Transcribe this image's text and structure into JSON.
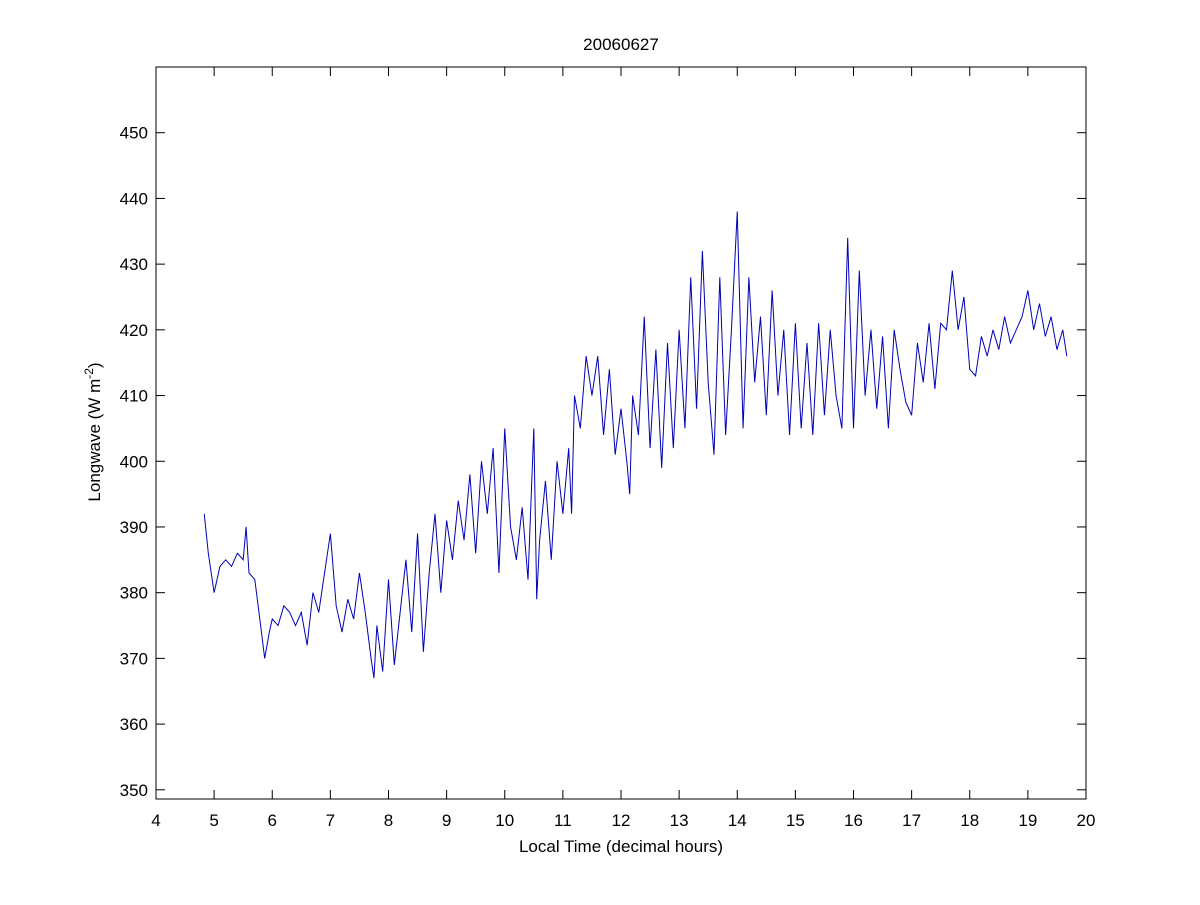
{
  "chart_data": {
    "type": "line",
    "title": "20060627",
    "xlabel": "Local Time (decimal hours)",
    "ylabel": {
      "text": "Longwave (W m",
      "superscript": "-2",
      "suffix": ")"
    },
    "xlim": [
      4,
      20
    ],
    "xticks": [
      4,
      5,
      6,
      7,
      8,
      9,
      10,
      11,
      12,
      13,
      14,
      15,
      16,
      17,
      18,
      19,
      20
    ],
    "ylim": [
      348.6,
      460
    ],
    "yticks": [
      350,
      360,
      370,
      380,
      390,
      400,
      410,
      420,
      430,
      440,
      450
    ],
    "series": [
      {
        "color": "#0000b8",
        "x": [
          4.83,
          4.9,
          5.0,
          5.1,
          5.2,
          5.3,
          5.4,
          5.5,
          5.55,
          5.6,
          5.7,
          5.8,
          5.87,
          5.95,
          6.0,
          6.1,
          6.2,
          6.3,
          6.4,
          6.5,
          6.6,
          6.7,
          6.8,
          6.9,
          7.0,
          7.1,
          7.2,
          7.3,
          7.4,
          7.5,
          7.6,
          7.7,
          7.75,
          7.8,
          7.9,
          8.0,
          8.1,
          8.2,
          8.3,
          8.4,
          8.5,
          8.6,
          8.7,
          8.8,
          8.9,
          9.0,
          9.1,
          9.2,
          9.3,
          9.4,
          9.5,
          9.6,
          9.7,
          9.8,
          9.9,
          10.0,
          10.1,
          10.2,
          10.3,
          10.4,
          10.5,
          10.55,
          10.6,
          10.7,
          10.8,
          10.9,
          11.0,
          11.1,
          11.15,
          11.2,
          11.3,
          11.4,
          11.5,
          11.6,
          11.7,
          11.8,
          11.9,
          12.0,
          12.1,
          12.15,
          12.2,
          12.3,
          12.4,
          12.5,
          12.6,
          12.7,
          12.8,
          12.9,
          13.0,
          13.1,
          13.2,
          13.3,
          13.4,
          13.5,
          13.6,
          13.7,
          13.8,
          13.9,
          14.0,
          14.1,
          14.2,
          14.3,
          14.4,
          14.5,
          14.6,
          14.7,
          14.8,
          14.9,
          15.0,
          15.1,
          15.2,
          15.3,
          15.4,
          15.5,
          15.6,
          15.7,
          15.8,
          15.9,
          16.0,
          16.1,
          16.2,
          16.3,
          16.4,
          16.5,
          16.6,
          16.7,
          16.8,
          16.9,
          17.0,
          17.1,
          17.2,
          17.3,
          17.4,
          17.5,
          17.6,
          17.7,
          17.8,
          17.9,
          18.0,
          18.1,
          18.2,
          18.3,
          18.4,
          18.5,
          18.6,
          18.7,
          18.8,
          18.9,
          19.0,
          19.1,
          19.2,
          19.3,
          19.4,
          19.5,
          19.6,
          19.67
        ],
        "values": [
          392,
          386,
          380,
          384,
          385,
          384,
          386,
          385,
          390,
          383,
          382,
          375,
          370,
          374,
          376,
          375,
          378,
          377,
          375,
          377,
          372,
          380,
          377,
          383,
          389,
          378,
          374,
          379,
          376,
          383,
          377,
          370,
          367,
          375,
          368,
          382,
          369,
          377,
          385,
          374,
          389,
          371,
          383,
          392,
          380,
          391,
          385,
          394,
          388,
          398,
          386,
          400,
          392,
          402,
          383,
          405,
          390,
          385,
          393,
          382,
          405,
          379,
          388,
          397,
          385,
          400,
          392,
          402,
          392,
          410,
          405,
          416,
          410,
          416,
          404,
          414,
          401,
          408,
          400,
          395,
          410,
          404,
          422,
          402,
          417,
          399,
          418,
          402,
          420,
          405,
          428,
          408,
          432,
          412,
          401,
          428,
          404,
          420,
          438,
          405,
          428,
          412,
          422,
          407,
          426,
          410,
          420,
          404,
          421,
          405,
          418,
          404,
          421,
          407,
          420,
          410,
          405,
          434,
          405,
          429,
          410,
          420,
          408,
          419,
          405,
          420,
          414,
          409,
          407,
          418,
          412,
          421,
          411,
          421,
          420,
          429,
          420,
          425,
          414,
          413,
          419,
          416,
          420,
          417,
          422,
          418,
          420,
          422,
          426,
          420,
          424,
          419,
          422,
          417,
          420,
          416
        ]
      }
    ]
  }
}
